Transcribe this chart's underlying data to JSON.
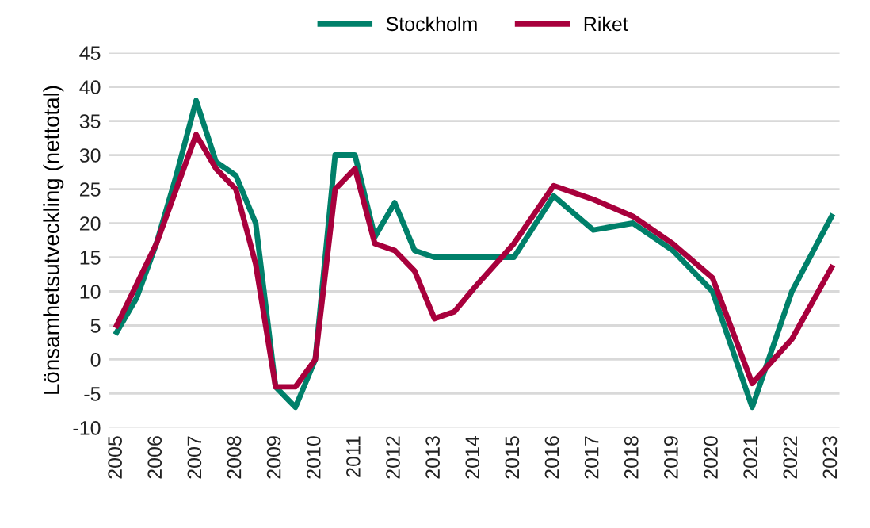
{
  "chart_data": {
    "type": "line",
    "ylabel": "Lönsamhetsutveckling (nettotal)",
    "x": [
      2005,
      2005.5,
      2006,
      2006.5,
      2007,
      2007.5,
      2008,
      2008.5,
      2009,
      2009.5,
      2010,
      2010.5,
      2011,
      2011.5,
      2012,
      2012.5,
      2013,
      2013.5,
      2014,
      2015,
      2016,
      2017,
      2018,
      2019,
      2020,
      2021,
      2022,
      2023
    ],
    "series": [
      {
        "name": "Stockholm",
        "color": "#00806a",
        "values": [
          4,
          9,
          17,
          27,
          38,
          29,
          27,
          20,
          -4,
          -7,
          0,
          30,
          30,
          18,
          23,
          16,
          15,
          15,
          15,
          15,
          24,
          19,
          20,
          16,
          10,
          -7,
          10,
          21
        ]
      },
      {
        "name": "Riket",
        "color": "#a8003c",
        "values": [
          5,
          11,
          17,
          25,
          33,
          28,
          25,
          14,
          -4,
          -4,
          0,
          25,
          28,
          17,
          16,
          13,
          6,
          7,
          10.5,
          17,
          25.5,
          23.5,
          21,
          17,
          12,
          -3.5,
          3,
          13.5
        ]
      }
    ],
    "xlim": [
      2004.8,
      2023.2
    ],
    "xticks": [
      2005,
      2006,
      2007,
      2008,
      2009,
      2010,
      2011,
      2012,
      2013,
      2014,
      2015,
      2016,
      2017,
      2018,
      2019,
      2020,
      2021,
      2022,
      2023
    ],
    "ylim": [
      -10,
      45
    ],
    "yticks": [
      -10,
      -5,
      0,
      5,
      10,
      15,
      20,
      25,
      30,
      35,
      40,
      45
    ],
    "grid": "y",
    "legend": "top",
    "marker": "none",
    "line_style": "solid"
  }
}
